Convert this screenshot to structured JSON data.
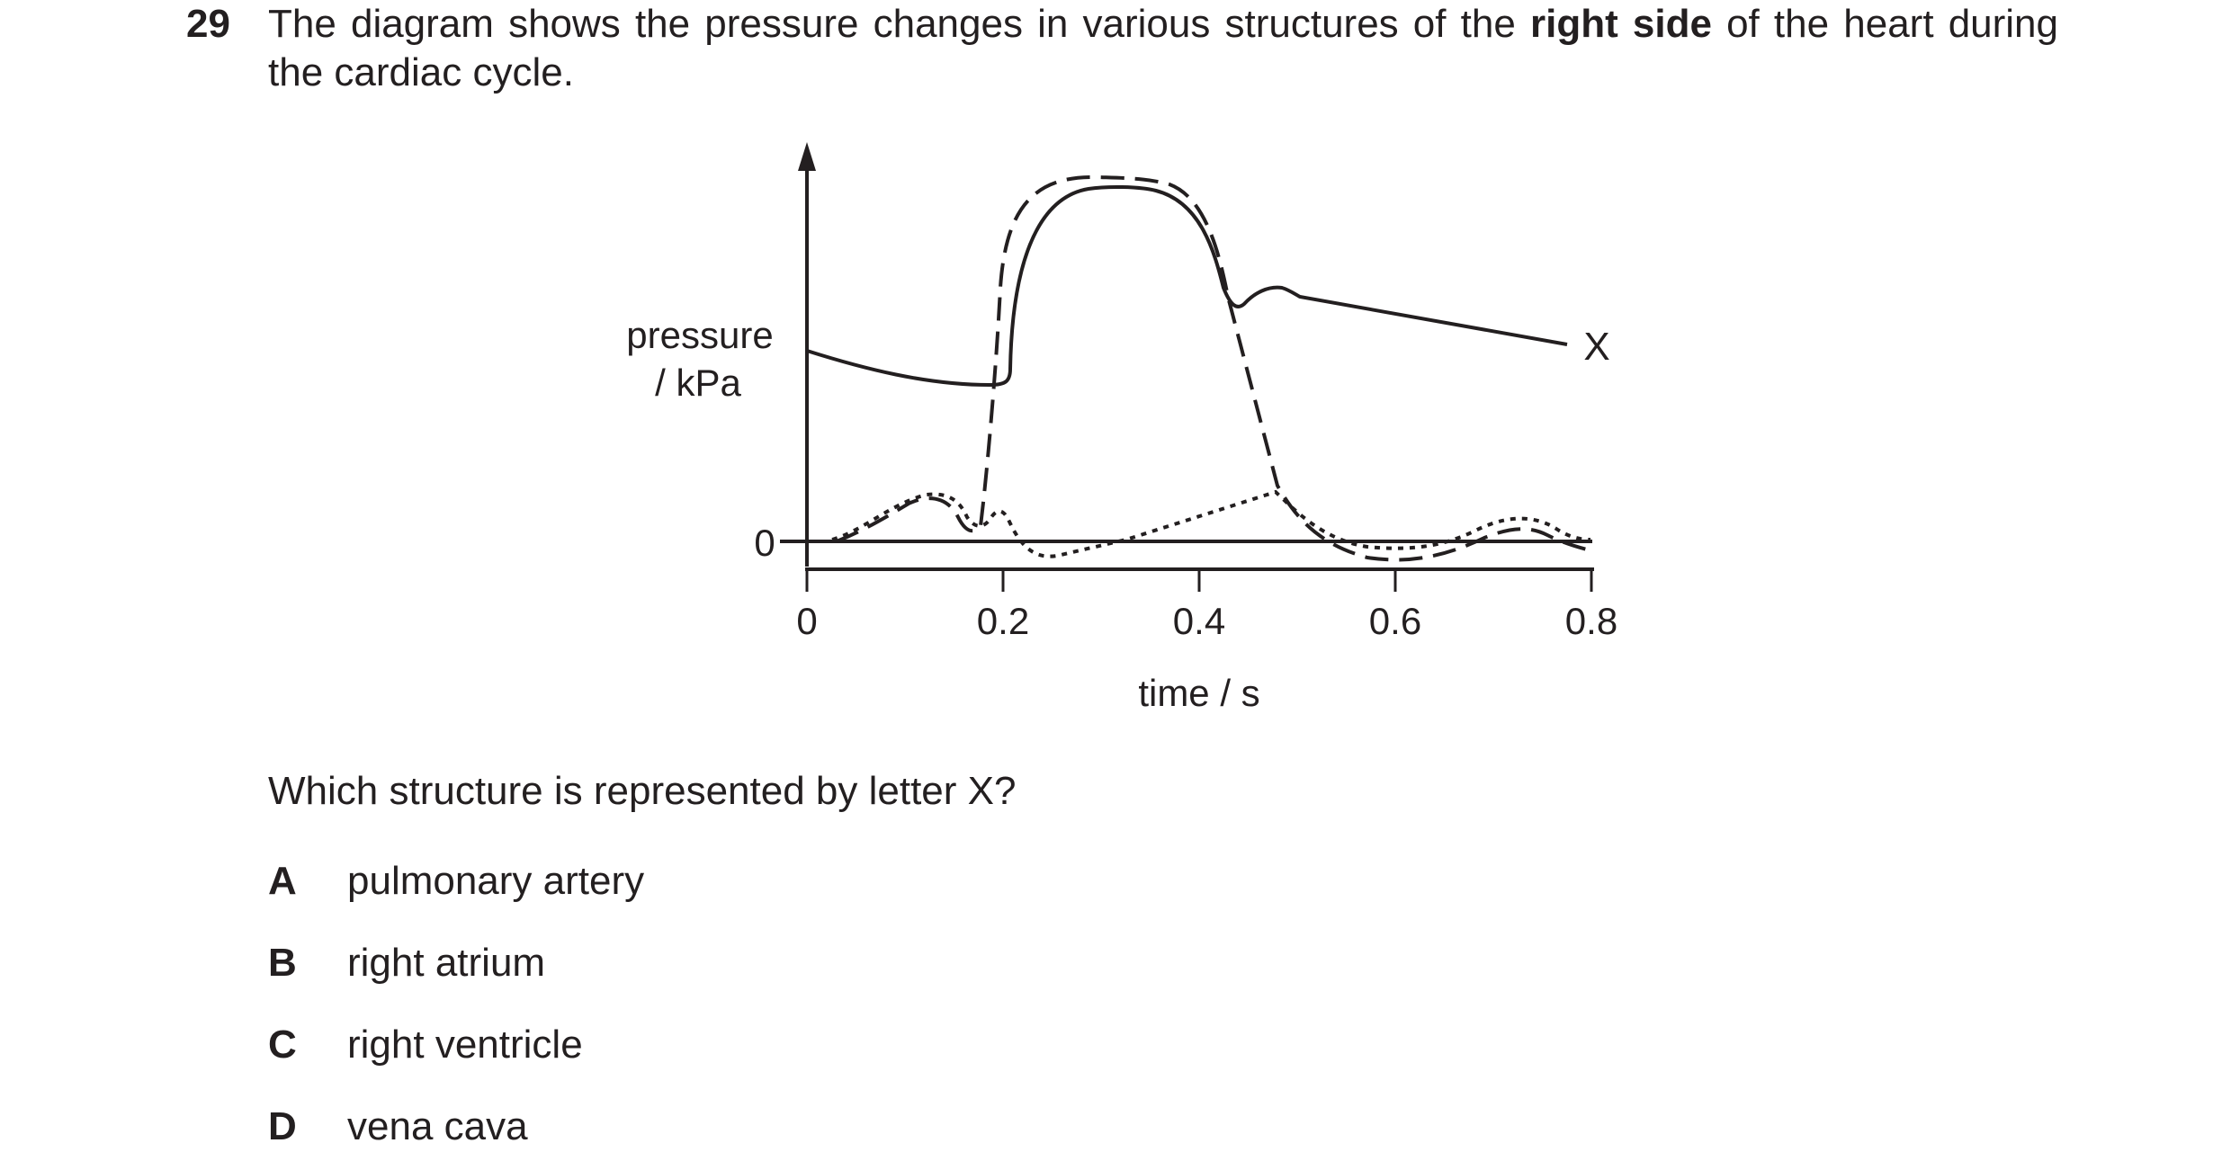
{
  "question": {
    "number": "29",
    "stem_part1": "The diagram shows the pressure changes in various structures of the ",
    "stem_bold": "right side",
    "stem_part2": " of the heart during the cardiac cycle.",
    "prompt": "Which structure is represented by letter X?"
  },
  "options": [
    {
      "letter": "A",
      "text": "pulmonary artery"
    },
    {
      "letter": "B",
      "text": "right atrium"
    },
    {
      "letter": "C",
      "text": "right ventricle"
    },
    {
      "letter": "D",
      "text": "vena cava"
    }
  ],
  "figure": {
    "ylabel_line1": "pressure",
    "ylabel_line2": "/ kPa",
    "xlabel": "time / s",
    "zero_label": "0",
    "x_ticks": [
      "0",
      "0.2",
      "0.4",
      "0.6",
      "0.8"
    ],
    "curve_label": "X"
  }
}
